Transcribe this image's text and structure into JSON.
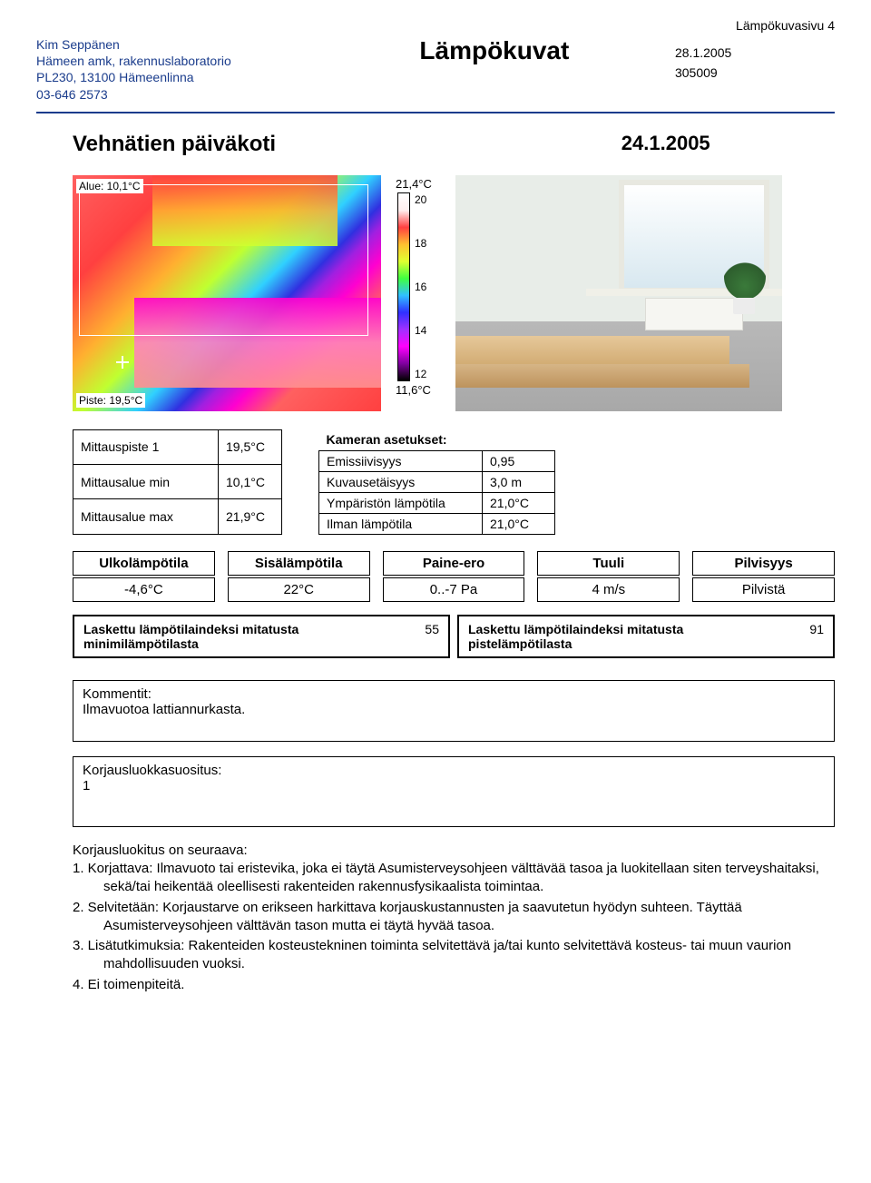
{
  "page_label": "Lämpökuvasivu 4",
  "header": {
    "contact": {
      "name": "Kim Seppänen",
      "org": "Hämeen amk, rakennuslaboratorio",
      "addr": "PL230, 13100 Hämeenlinna",
      "phone": "03-646 2573"
    },
    "title": "Lämpökuvat",
    "date": "28.1.2005",
    "ref": "305009",
    "contact_color": "#1a3c8c"
  },
  "subject": {
    "name": "Vehnätien päiväkoti",
    "date": "24.1.2005"
  },
  "thermal": {
    "area_label": "Alue: 10,1°C",
    "point_label": "Piste: 19,5°C",
    "scale_top": "21,4°C",
    "scale_bottom": "11,6°C",
    "scale_ticks": [
      "20",
      "18",
      "16",
      "14",
      "12"
    ]
  },
  "measurements": {
    "rows": [
      {
        "label": "Mittauspiste 1",
        "value": "19,5°C"
      },
      {
        "label": "Mittausalue min",
        "value": "10,1°C"
      },
      {
        "label": "Mittausalue max",
        "value": "21,9°C"
      }
    ]
  },
  "camera": {
    "header": "Kameran asetukset:",
    "rows": [
      {
        "label": "Emissiivisyys",
        "value": "0,95"
      },
      {
        "label": "Kuvausetäisyys",
        "value": "3,0 m"
      },
      {
        "label": "Ympäristön lämpötila",
        "value": "21,0°C"
      },
      {
        "label": "Ilman lämpötila",
        "value": "21,0°C"
      }
    ]
  },
  "env": {
    "cols": [
      {
        "h": "Ulkolämpötila",
        "v": "-4,6°C"
      },
      {
        "h": "Sisälämpötila",
        "v": "22°C"
      },
      {
        "h": "Paine-ero",
        "v": "0..-7 Pa"
      },
      {
        "h": "Tuuli",
        "v": "4 m/s"
      },
      {
        "h": "Pilvisyys",
        "v": "Pilvistä"
      }
    ]
  },
  "indices": {
    "left": {
      "label": "Laskettu lämpötilaindeksi mitatusta minimilämpötilasta",
      "value": "55"
    },
    "right": {
      "label": "Laskettu lämpötilaindeksi mitatusta pistelämpötilasta",
      "value": "91"
    }
  },
  "comments": {
    "header": "Kommentit:",
    "text": "Ilmavuotoa lattiannurkasta."
  },
  "repair": {
    "header": "Korjausluokkasuositus:",
    "value": "1"
  },
  "classification": {
    "intro": "Korjausluokitus on seuraava:",
    "items": [
      "1. Korjattava:  Ilmavuoto tai eristevika, joka ei täytä Asumisterveysohjeen välttävää tasoa ja luokitellaan siten terveyshaitaksi, sekä/tai heikentää oleellisesti rakenteiden rakennusfysikaalista toimintaa.",
      "2. Selvitetään: Korjaustarve on erikseen harkittava korjauskustannusten ja saavutetun hyödyn suhteen. Täyttää Asumisterveysohjeen välttävän tason mutta ei täytä hyvää tasoa.",
      "3. Lisätutkimuksia: Rakenteiden kosteustekninen toiminta selvitettävä ja/tai kunto selvitettävä kosteus- tai muun vaurion mahdollisuuden vuoksi.",
      "4. Ei toimenpiteitä."
    ]
  }
}
